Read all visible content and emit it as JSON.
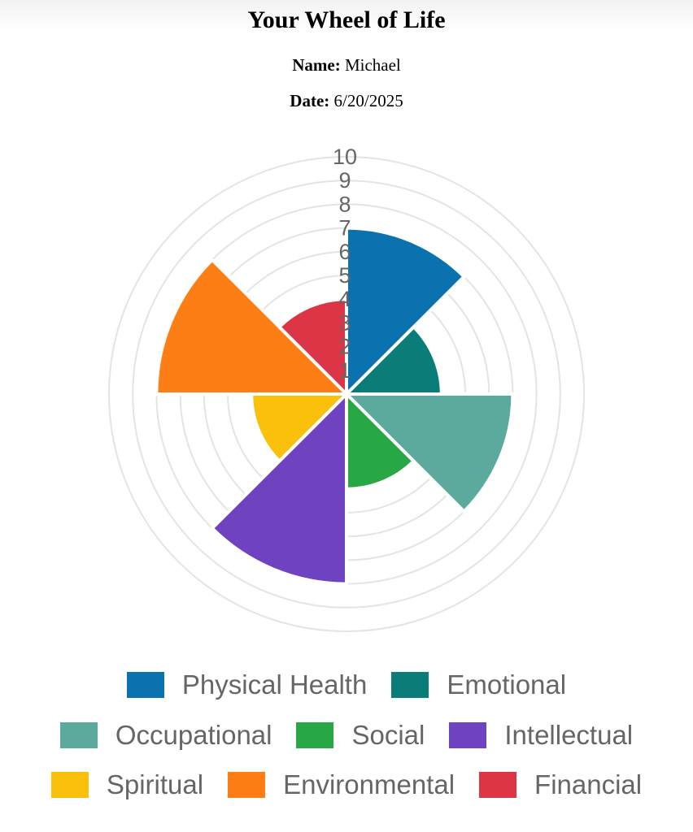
{
  "header": {
    "title": "Your Wheel of Life",
    "name_label": "Name:",
    "name_value": "Michael",
    "date_label": "Date:",
    "date_value": "6/20/2025"
  },
  "chart_data": {
    "type": "polarArea",
    "title": "",
    "scale": {
      "min": 0,
      "max": 10,
      "step": 1
    },
    "tick_labels": [
      "1",
      "2",
      "3",
      "4",
      "5",
      "6",
      "7",
      "8",
      "9",
      "10"
    ],
    "grid": true,
    "legend_position": "bottom",
    "categories": [
      "Physical Health",
      "Emotional",
      "Occupational",
      "Social",
      "Intellectual",
      "Spiritual",
      "Environmental",
      "Financial"
    ],
    "values": [
      7,
      4,
      7,
      4,
      8,
      4,
      8,
      4
    ],
    "colors": [
      "#0b72b0",
      "#0b7d78",
      "#5baa9d",
      "#27a844",
      "#6f42c1",
      "#fbc00c",
      "#fd7e14",
      "#dc3545"
    ]
  },
  "legend": {
    "rows": [
      [
        {
          "label": "Physical Health",
          "color": "#0b72b0"
        },
        {
          "label": "Emotional",
          "color": "#0b7d78"
        }
      ],
      [
        {
          "label": "Occupational",
          "color": "#5baa9d"
        },
        {
          "label": "Social",
          "color": "#27a844"
        },
        {
          "label": "Intellectual",
          "color": "#6f42c1"
        }
      ],
      [
        {
          "label": "Spiritual",
          "color": "#fbc00c"
        },
        {
          "label": "Environmental",
          "color": "#fd7e14"
        },
        {
          "label": "Financial",
          "color": "#dc3545"
        }
      ]
    ]
  }
}
